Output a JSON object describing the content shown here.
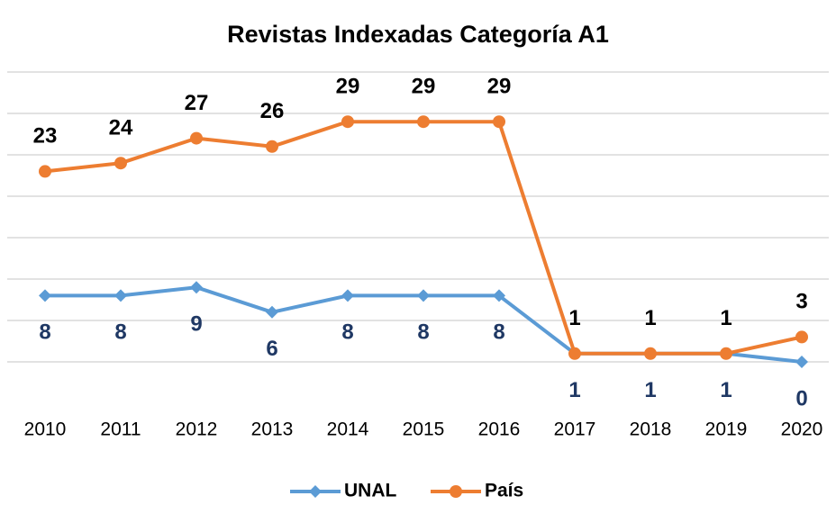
{
  "chart_data": {
    "type": "line",
    "title": "Revistas Indexadas Categoría A1",
    "categories": [
      "2010",
      "2011",
      "2012",
      "2013",
      "2014",
      "2015",
      "2016",
      "2017",
      "2018",
      "2019",
      "2020"
    ],
    "series": [
      {
        "name": "UNAL",
        "color": "#5b9bd5",
        "label_color": "#1f3864",
        "marker": "diamond",
        "label_position": "below",
        "values": [
          8,
          8,
          9,
          6,
          8,
          8,
          8,
          1,
          1,
          1,
          0
        ]
      },
      {
        "name": "País",
        "color": "#ed7d31",
        "label_color": "#000000",
        "marker": "circle",
        "label_position": "above",
        "values": [
          23,
          24,
          27,
          26,
          29,
          29,
          29,
          1,
          1,
          1,
          3
        ]
      }
    ],
    "ylim": [
      0,
      35
    ],
    "yticks": [
      0,
      5,
      10,
      15,
      20,
      25,
      30,
      35
    ],
    "grid": true,
    "legend": "bottom"
  }
}
